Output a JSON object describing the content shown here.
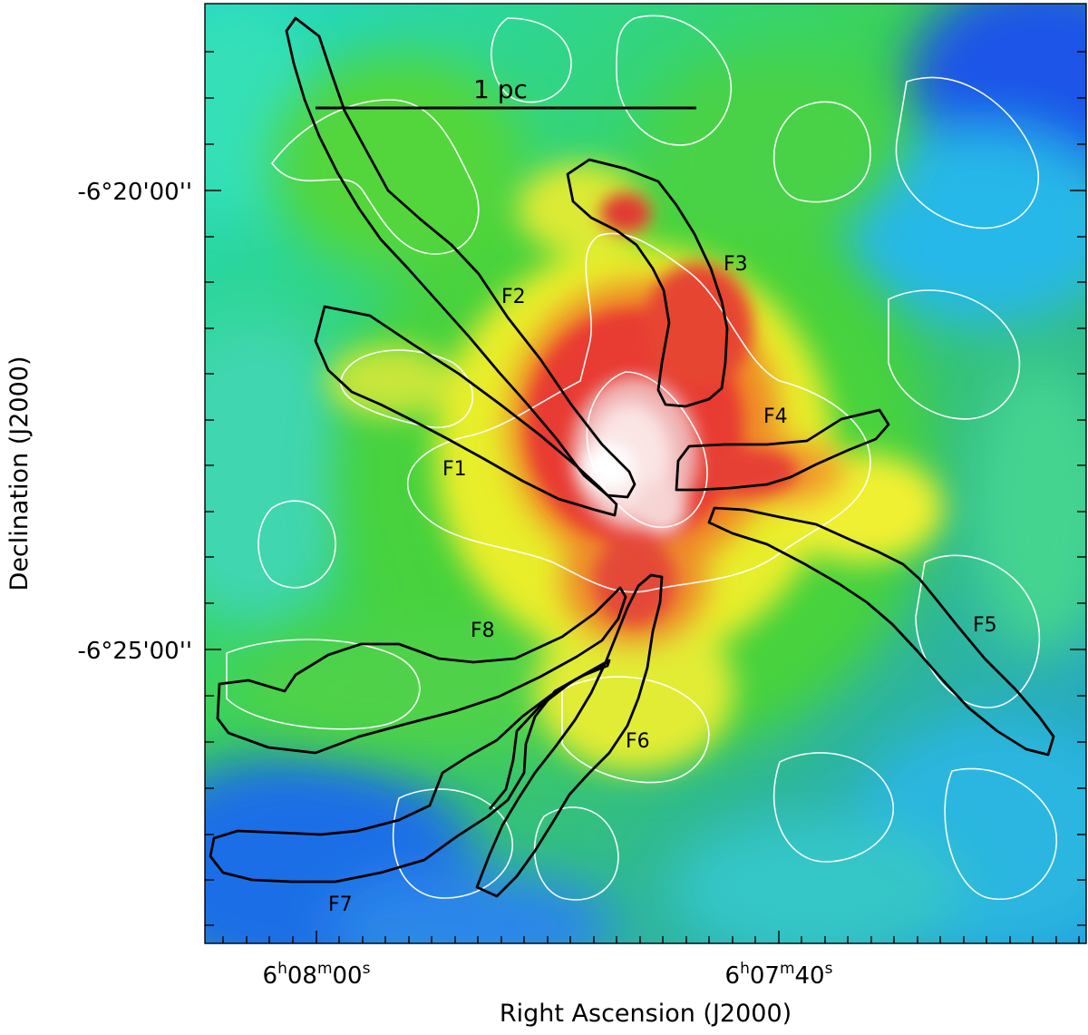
{
  "figure": {
    "x_axis_title": "Right Ascension (J2000)",
    "y_axis_title": "Declination (J2000)",
    "x_ticks": [
      {
        "h": "6",
        "m": "08",
        "s": "00"
      },
      {
        "h": "6",
        "m": "07",
        "s": "40"
      }
    ],
    "y_ticks": [
      "-6°20'00''",
      "-6°25'00''"
    ],
    "scale_bar": "1 pc",
    "filaments": [
      "F1",
      "F2",
      "F3",
      "F4",
      "F5",
      "F6",
      "F7",
      "F8"
    ],
    "colormap": "rainbow (blue → cyan → green → yellow → red → white)",
    "contour_color": "#ffffff",
    "filament_outline_color": "#000000"
  }
}
